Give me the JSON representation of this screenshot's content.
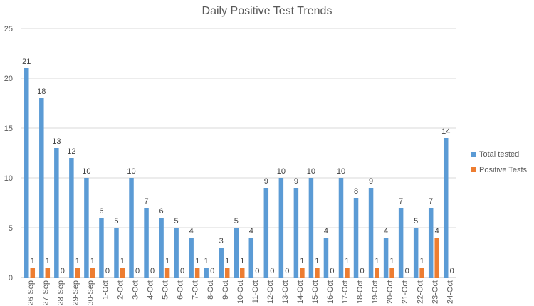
{
  "chart_data": {
    "type": "bar",
    "title": "Daily Positive Test Trends",
    "xlabel": "",
    "ylabel": "",
    "ylim": [
      0,
      25
    ],
    "yticks": [
      0,
      5,
      10,
      15,
      20,
      25
    ],
    "grid": true,
    "legend_position": "right",
    "categories": [
      "26-Sep",
      "27-Sep",
      "28-Sep",
      "29-Sep",
      "30-Sep",
      "1-Oct",
      "2-Oct",
      "3-Oct",
      "4-Oct",
      "5-Oct",
      "6-Oct",
      "7-Oct",
      "8-Oct",
      "9-Oct",
      "10-Oct",
      "11-Oct",
      "12-Oct",
      "13-Oct",
      "14-Oct",
      "15-Oct",
      "16-Oct",
      "17-Oct",
      "18-Oct",
      "19-Oct",
      "20-Oct",
      "21-Oct",
      "22-Oct",
      "23-Oct",
      "24-Oct"
    ],
    "series": [
      {
        "name": "Total tested",
        "color": "#5b9bd5",
        "values": [
          21,
          18,
          13,
          12,
          10,
          6,
          5,
          10,
          7,
          6,
          5,
          4,
          1,
          3,
          5,
          4,
          9,
          10,
          9,
          10,
          4,
          10,
          8,
          9,
          4,
          7,
          5,
          7,
          14
        ]
      },
      {
        "name": "Positive Tests",
        "color": "#ed7d31",
        "values": [
          1,
          1,
          0,
          1,
          1,
          0,
          1,
          0,
          0,
          1,
          0,
          1,
          0,
          1,
          1,
          0,
          0,
          0,
          1,
          1,
          0,
          1,
          0,
          1,
          1,
          0,
          1,
          4,
          0
        ]
      }
    ]
  }
}
